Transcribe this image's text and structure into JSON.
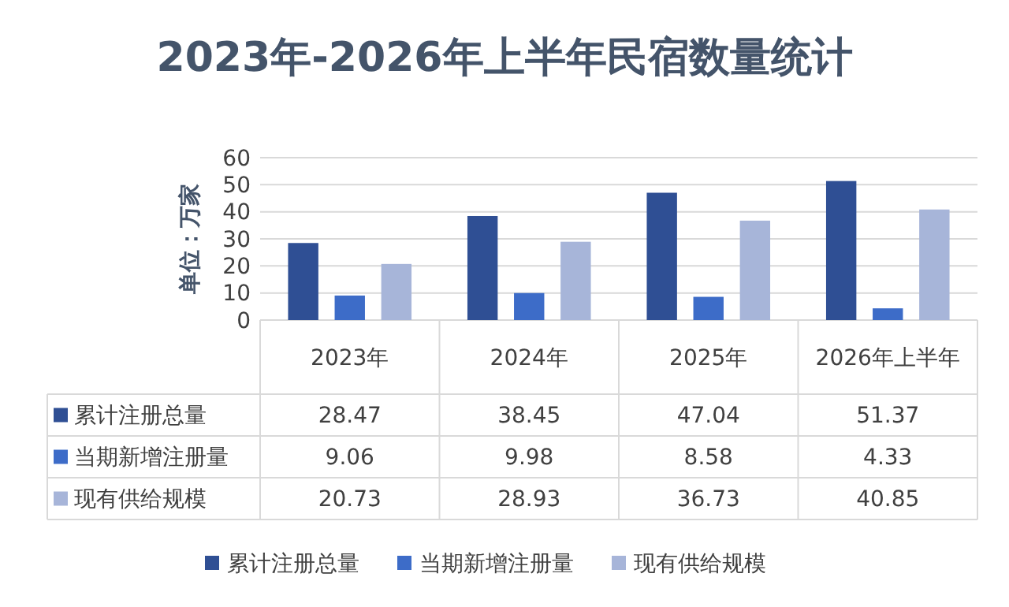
{
  "chart_data": {
    "type": "bar",
    "title": "2023年-2026年上半年民宿数量统计",
    "ylabel": "单位：万家",
    "categories": [
      "2023年",
      "2024年",
      "2025年",
      "2026年上半年"
    ],
    "series": [
      {
        "name": "累计注册总量",
        "color": "#2f4f94",
        "values": [
          28.47,
          38.45,
          47.04,
          51.37
        ]
      },
      {
        "name": "当期新增注册量",
        "color": "#3d6cc8",
        "values": [
          9.06,
          9.98,
          8.58,
          4.33
        ]
      },
      {
        "name": "现有供给规模",
        "color": "#a7b5d9",
        "values": [
          20.73,
          28.93,
          36.73,
          40.85
        ]
      }
    ],
    "ylim": [
      0,
      60
    ],
    "yticks": [
      0,
      10,
      20,
      30,
      40,
      50,
      60
    ],
    "grid": "y",
    "legend": "bottom",
    "data_labels": true
  }
}
